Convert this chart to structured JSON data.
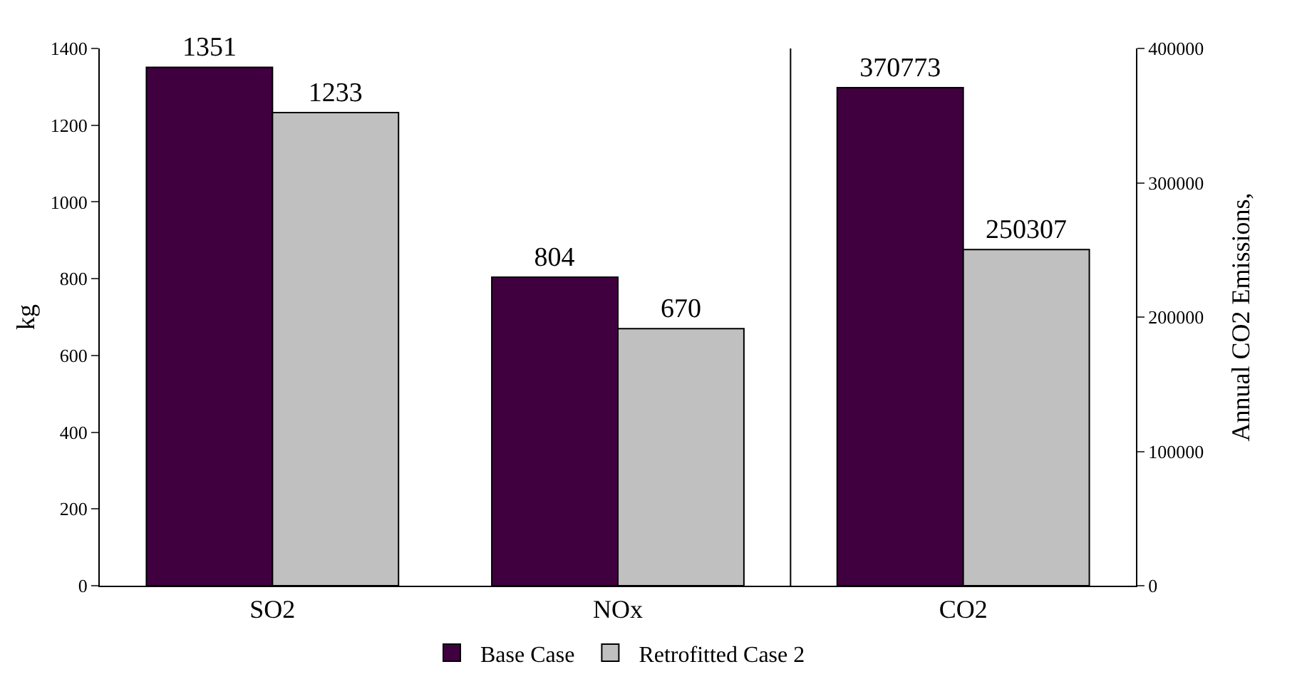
{
  "chart_data": {
    "type": "bar",
    "categories": [
      "SO2",
      "NOx",
      "CO2"
    ],
    "series": [
      {
        "name": "Base Case",
        "color": "#400040",
        "values": [
          1351,
          804,
          null
        ]
      },
      {
        "name": "Retrofitted Case 2",
        "color": "#c0c0c0",
        "values": [
          1233,
          670,
          null
        ]
      },
      {
        "color": "#400040",
        "values": [
          null,
          null,
          370773
        ],
        "axis": "y2"
      },
      {
        "color": "#c0c0c0",
        "values": [
          null,
          null,
          250307
        ],
        "axis": "y2"
      }
    ],
    "ylabel": "kg",
    "y2label": "Annual CO2 Emissions,",
    "ylim": [
      0,
      1400
    ],
    "yticks": [
      0,
      200,
      400,
      600,
      800,
      1000,
      1200,
      1400
    ],
    "y2lim": [
      0,
      400000
    ],
    "y2ticks": [
      0,
      100000,
      200000,
      300000,
      400000
    ],
    "data_labels": true,
    "grid": false,
    "legend": "bottom"
  }
}
